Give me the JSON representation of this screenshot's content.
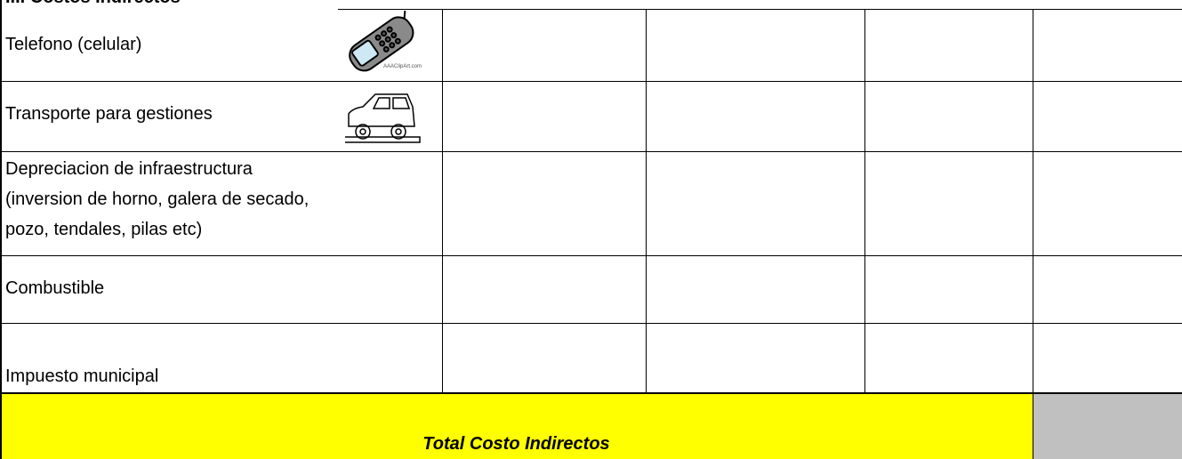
{
  "header": {
    "title": "III.  Costos Indirectos"
  },
  "rows": [
    {
      "label": [
        "Telefono (celular)"
      ],
      "icon_text": "AAAClipArt.com"
    },
    {
      "label": [
        "Transporte para gestiones"
      ]
    },
    {
      "label": [
        "Depreciacion de infraestructura",
        "(inversion de horno, galera de secado,",
        "pozo, tendales, pilas etc)"
      ]
    },
    {
      "label": [
        "Combustible"
      ]
    },
    {
      "label": [
        "Impuesto municipal"
      ]
    }
  ],
  "total": {
    "label": "Total Costo Indirectos"
  }
}
